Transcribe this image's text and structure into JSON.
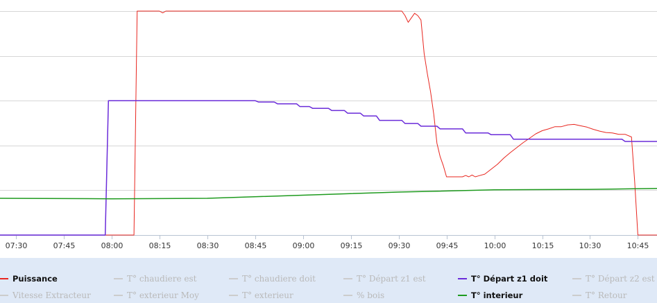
{
  "chart_data": {
    "type": "line",
    "xlim": [
      "07:25",
      "10:51"
    ],
    "ylim": [
      0,
      5.15
    ],
    "grid": true,
    "x_ticks": [
      "07:30",
      "07:45",
      "08:00",
      "08:15",
      "08:30",
      "08:45",
      "09:00",
      "09:15",
      "09:30",
      "09:45",
      "10:00",
      "10:15",
      "10:30",
      "10:45"
    ],
    "series": [
      {
        "name": "Puissance",
        "color": "#e8251e",
        "visible": true,
        "points": [
          [
            "07:25",
            0
          ],
          [
            "08:07",
            0
          ],
          [
            "08:08",
            5
          ],
          [
            "08:15",
            5
          ],
          [
            "08:16",
            4.96
          ],
          [
            "08:17",
            5
          ],
          [
            "09:31",
            5
          ],
          [
            "09:32",
            4.9
          ],
          [
            "09:33",
            4.75
          ],
          [
            "09:34",
            4.85
          ],
          [
            "09:35",
            4.95
          ],
          [
            "09:36",
            4.9
          ],
          [
            "09:37",
            4.8
          ],
          [
            "09:38",
            4.05
          ],
          [
            "09:39",
            3.6
          ],
          [
            "09:40",
            3.2
          ],
          [
            "09:41",
            2.7
          ],
          [
            "09:42",
            2.05
          ],
          [
            "09:43",
            1.75
          ],
          [
            "09:44",
            1.55
          ],
          [
            "09:45",
            1.3
          ],
          [
            "09:50",
            1.3
          ],
          [
            "09:51",
            1.33
          ],
          [
            "09:52",
            1.3
          ],
          [
            "09:53",
            1.34
          ],
          [
            "09:54",
            1.3
          ],
          [
            "09:55",
            1.32
          ],
          [
            "09:57",
            1.36
          ],
          [
            "09:59",
            1.47
          ],
          [
            "10:01",
            1.58
          ],
          [
            "10:03",
            1.72
          ],
          [
            "10:05",
            1.84
          ],
          [
            "10:07",
            1.95
          ],
          [
            "10:09",
            2.06
          ],
          [
            "10:11",
            2.16
          ],
          [
            "10:13",
            2.26
          ],
          [
            "10:15",
            2.33
          ],
          [
            "10:17",
            2.37
          ],
          [
            "10:19",
            2.42
          ],
          [
            "10:21",
            2.42
          ],
          [
            "10:23",
            2.46
          ],
          [
            "10:25",
            2.47
          ],
          [
            "10:27",
            2.44
          ],
          [
            "10:29",
            2.41
          ],
          [
            "10:31",
            2.36
          ],
          [
            "10:33",
            2.32
          ],
          [
            "10:35",
            2.29
          ],
          [
            "10:37",
            2.28
          ],
          [
            "10:39",
            2.25
          ],
          [
            "10:41",
            2.25
          ],
          [
            "10:43",
            2.19
          ],
          [
            "10:44",
            1.2
          ],
          [
            "10:45",
            0
          ],
          [
            "10:51",
            0
          ]
        ]
      },
      {
        "name": "T° Départ z1 doit",
        "color": "#6a2bd9",
        "visible": true,
        "points": [
          [
            "07:25",
            0
          ],
          [
            "07:58",
            0
          ],
          [
            "07:59",
            3
          ],
          [
            "08:45",
            3
          ],
          [
            "08:46",
            2.97
          ],
          [
            "08:51",
            2.97
          ],
          [
            "08:52",
            2.93
          ],
          [
            "08:58",
            2.93
          ],
          [
            "08:59",
            2.87
          ],
          [
            "09:02",
            2.87
          ],
          [
            "09:03",
            2.83
          ],
          [
            "09:08",
            2.83
          ],
          [
            "09:09",
            2.78
          ],
          [
            "09:13",
            2.78
          ],
          [
            "09:14",
            2.72
          ],
          [
            "09:18",
            2.72
          ],
          [
            "09:19",
            2.66
          ],
          [
            "09:23",
            2.66
          ],
          [
            "09:24",
            2.56
          ],
          [
            "09:31",
            2.56
          ],
          [
            "09:32",
            2.49
          ],
          [
            "09:36",
            2.49
          ],
          [
            "09:37",
            2.43
          ],
          [
            "09:42",
            2.43
          ],
          [
            "09:43",
            2.37
          ],
          [
            "09:50",
            2.37
          ],
          [
            "09:51",
            2.28
          ],
          [
            "09:58",
            2.28
          ],
          [
            "09:59",
            2.24
          ],
          [
            "10:05",
            2.24
          ],
          [
            "10:06",
            2.14
          ],
          [
            "10:40",
            2.14
          ],
          [
            "10:41",
            2.09
          ],
          [
            "10:51",
            2.09
          ]
        ]
      },
      {
        "name": "T° interieur",
        "color": "#1d9a1d",
        "visible": true,
        "points": [
          [
            "07:25",
            0.82
          ],
          [
            "08:00",
            0.81
          ],
          [
            "08:30",
            0.82
          ],
          [
            "09:00",
            0.89
          ],
          [
            "09:30",
            0.96
          ],
          [
            "10:00",
            1.01
          ],
          [
            "10:30",
            1.02
          ],
          [
            "10:51",
            1.04
          ]
        ]
      }
    ],
    "legend": [
      {
        "label": "Puissance",
        "color": "#e8251e",
        "visible": true
      },
      {
        "label": "T° chaudiere est",
        "color": "#cccccc",
        "visible": false
      },
      {
        "label": "T° chaudiere doit",
        "color": "#cccccc",
        "visible": false
      },
      {
        "label": "T° Départ z1 est",
        "color": "#cccccc",
        "visible": false
      },
      {
        "label": "T° Départ z1 doit",
        "color": "#6a2bd9",
        "visible": true
      },
      {
        "label": "T° Départ z2 est",
        "color": "#cccccc",
        "visible": false
      },
      {
        "label": "Vitesse Extracteur",
        "color": "#cccccc",
        "visible": false
      },
      {
        "label": "T° exterieur Moy",
        "color": "#cccccc",
        "visible": false
      },
      {
        "label": "T° exterieur",
        "color": "#cccccc",
        "visible": false
      },
      {
        "label": "% bois",
        "color": "#cccccc",
        "visible": false
      },
      {
        "label": "T° interieur",
        "color": "#1d9a1d",
        "visible": true
      },
      {
        "label": "T° Retour",
        "color": "#cccccc",
        "visible": false
      }
    ]
  }
}
